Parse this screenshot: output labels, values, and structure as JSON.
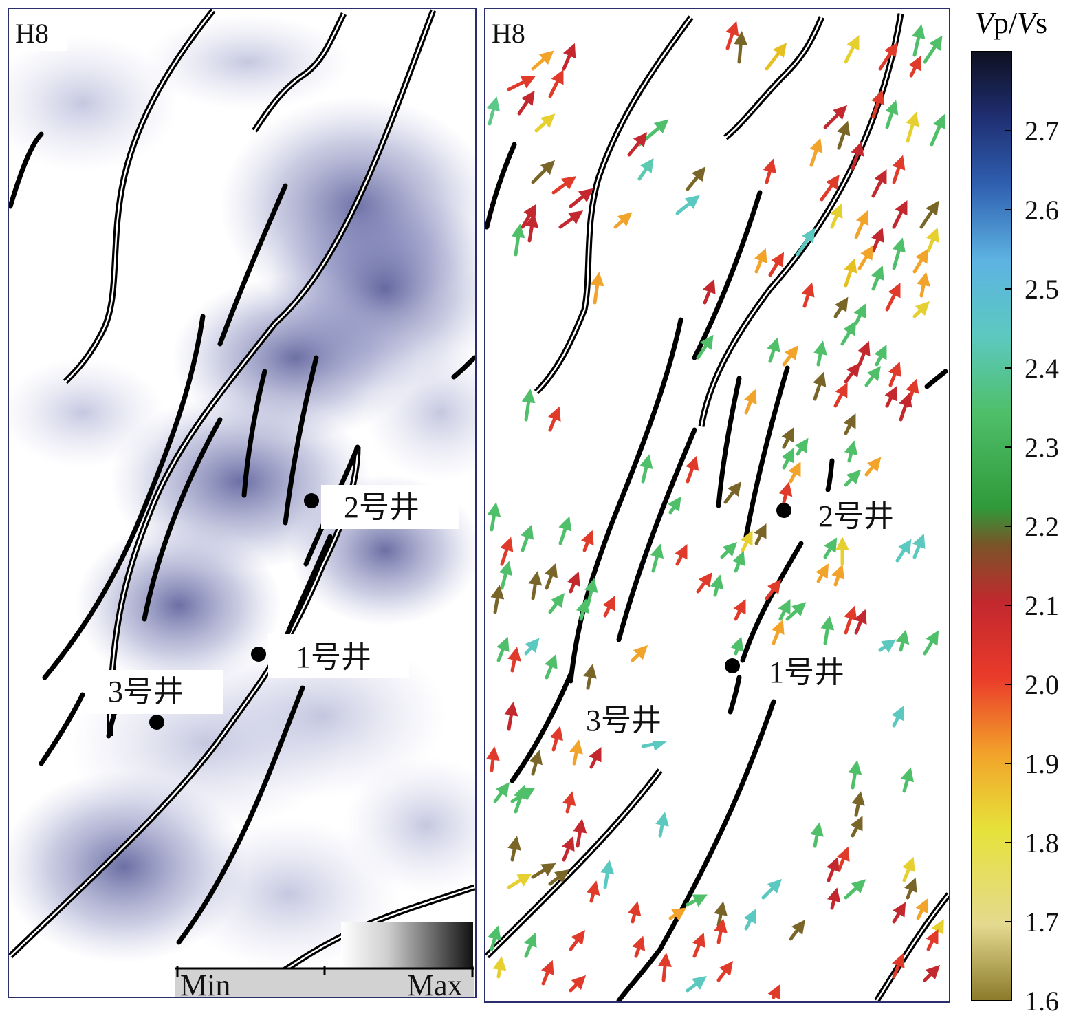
{
  "panels": {
    "left": {
      "label": "H8",
      "legend": {
        "min": "Min",
        "max": "Max"
      }
    },
    "right": {
      "label": "H8"
    }
  },
  "wells": [
    {
      "id": "well-1",
      "label": "1号井"
    },
    {
      "id": "well-2",
      "label": "2号井"
    },
    {
      "id": "well-3",
      "label": "3号井"
    }
  ],
  "colorbar": {
    "title_v1": "V",
    "title_p": "p/",
    "title_v2": "V",
    "title_s": "s",
    "min": 1.6,
    "max": 2.8,
    "ticks": [
      "2.7",
      "2.6",
      "2.5",
      "2.4",
      "2.3",
      "2.2",
      "2.1",
      "2.0",
      "1.9",
      "1.8",
      "1.7",
      "1.6"
    ]
  },
  "colors": {
    "frame": "#2a2f6b",
    "attribute_tint": "#5a5fa0",
    "fault": "#000000"
  }
}
